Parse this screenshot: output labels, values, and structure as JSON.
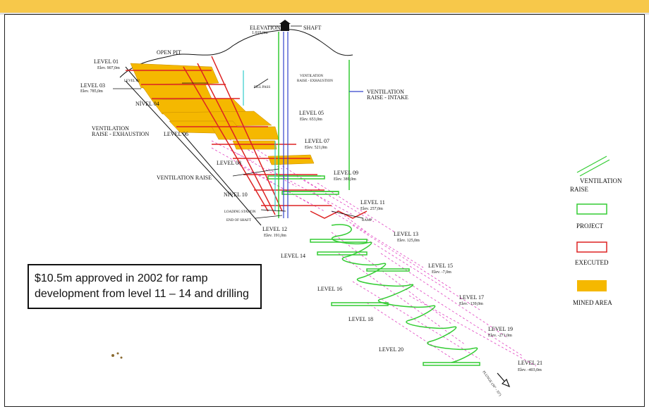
{
  "header": {
    "band_color": "#f7c84a"
  },
  "labels": {
    "elevation": "ELEVATION",
    "elevation_value": "1.019,0m",
    "shaft": "SHAFT",
    "open_pit": "OPEN PIT",
    "level01": "LEVEL 01",
    "level01_elev": "Elev.  907,0m",
    "level02": "LEVEL 02",
    "level03": "LEVEL 03",
    "level03_elev": "Elev.  785,0m",
    "nivel04": "NÍVEL 04",
    "level05": "LEVEL 05",
    "level05_elev": "Elev.  653,0m",
    "level06": "LEVEL 06",
    "level07": "LEVEL 07",
    "level07_elev": "Elev.  521,0m",
    "level08": "LEVEL 08",
    "level09": "LEVEL 09",
    "level09_elev": "Elev.  389,0m",
    "nivel10": "NÍVEL 10",
    "level11": "LEVEL 11",
    "level11_elev": "Elev.  257,0m",
    "level12": "LEVEL 12",
    "level12_elev": "Elev.  191,0m",
    "level13": "LEVEL 13",
    "level13_elev": "Elev.  125,0m",
    "level14": "LEVEL 14",
    "level15": "LEVEL 15",
    "level15_elev": "Elev.  -7,0m",
    "level16": "LEVEL 16",
    "level17": "LEVEL 17",
    "level17_elev": "Elev.  -139,0m",
    "level18": "LEVEL 18",
    "level19": "LEVEL 19",
    "level19_elev": "Elev.  -271,0m",
    "level20": "LEVEL 20",
    "level21": "LEVEL 21",
    "level21_elev": "Elev.  -403,0m",
    "fill_pass": "FILL PASS",
    "vent_exh_1": "VENTILATION",
    "vent_exh_2": "RAISE - EXHAUSTION",
    "vent_exh_left_1": "VENTILATION",
    "vent_exh_left_2": "RAISE - EXHAUSTION",
    "vent_intake_1": "VENTILATION",
    "vent_intake_2": "RAISE - INTAKE",
    "vent_raise": "VENTILATION RAISE",
    "loading_station": "LOADING STATION",
    "end_of_shaft": "END OF SHAFT",
    "ramp": "RAMP",
    "plunge": "PLUNGE (30° - 35°)"
  },
  "legend": {
    "vent_1": "VENTILATION",
    "vent_2": "RAISE",
    "project": "PROJECT",
    "executed": "EXECUTED",
    "mined_area": "MINED AREA",
    "colors": {
      "project": "#33cc33",
      "executed": "#dd2222",
      "mined": "#f5b800",
      "raise": "#33cc33"
    }
  },
  "callout": {
    "line1": "$10.5m approved in 2002 for ramp",
    "line2": "development from level 11 – 14 and drilling"
  }
}
